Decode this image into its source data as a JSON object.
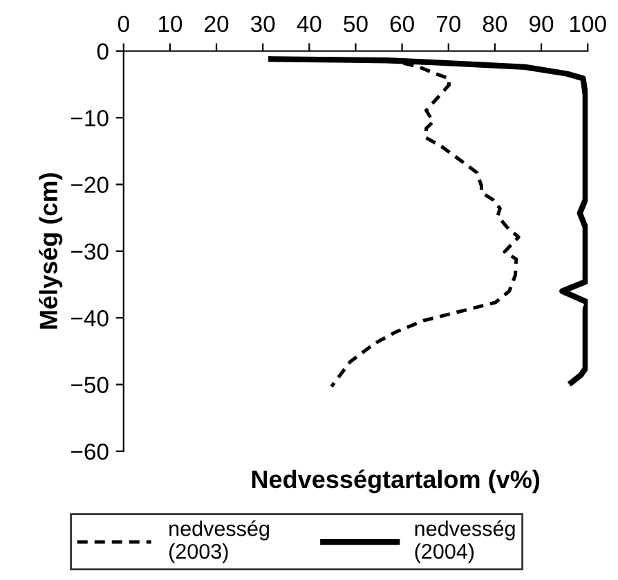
{
  "chart_data": {
    "type": "line",
    "xlabel": "Nedvességtartalom (v%)",
    "ylabel": "Mélység (cm)",
    "xlim": [
      0,
      100
    ],
    "xticks": [
      0,
      10,
      20,
      30,
      40,
      50,
      60,
      70,
      80,
      90,
      100
    ],
    "ylim": [
      -60,
      0
    ],
    "yticks": [
      0,
      {
        "value": -10,
        "label": "−10"
      },
      {
        "value": -20,
        "label": "−20"
      },
      {
        "value": -30,
        "label": "−30"
      },
      {
        "value": -40,
        "label": "−40"
      },
      {
        "value": -50,
        "label": "−50"
      },
      {
        "value": -60,
        "label": "−60"
      }
    ],
    "grid": false,
    "legend": "bottom",
    "series": [
      {
        "name": "nedvesség (2003)",
        "color": "#000000",
        "line_style": "dashed",
        "x": [
          56.7,
          63.7,
          67.2,
          70.1,
          70.1,
          65.2,
          66.7,
          65.2,
          65.2,
          68.7,
          72.6,
          76.1,
          77.1,
          77.1,
          79.6,
          81.1,
          80.6,
          82.6,
          85.1,
          82.1,
          84.6,
          84.4,
          83.1,
          80.1,
          76.1,
          71.6,
          64.7,
          58.7,
          54.2,
          48.8,
          44.8
        ],
        "values": [
          -1.2,
          -2.4,
          -3.4,
          -4.1,
          -5.1,
          -8.9,
          -10.6,
          -11.6,
          -13.0,
          -14.4,
          -16.4,
          -18.2,
          -20.2,
          -21.2,
          -22.3,
          -23.6,
          -24.7,
          -26.4,
          -27.9,
          -30.1,
          -31.2,
          -33.6,
          -36.0,
          -37.7,
          -38.4,
          -39.2,
          -40.4,
          -42.1,
          -43.8,
          -46.6,
          -50.3
        ]
      },
      {
        "name": "nedvesség (2004)",
        "color": "#000000",
        "line_style": "solid",
        "x": [
          31.8,
          56.7,
          66.7,
          86.6,
          95.5,
          99.0,
          99.5,
          99.5,
          98.3,
          99.5,
          99.5,
          94.5,
          100,
          99.5,
          99.5,
          98.5,
          96.5
        ],
        "values": [
          -1.2,
          -1.4,
          -1.7,
          -2.4,
          -3.4,
          -4.1,
          -6.5,
          -22.3,
          -24.3,
          -26.4,
          -34.6,
          -36.0,
          -37.7,
          -38.7,
          -47.6,
          -48.6,
          -49.7
        ]
      }
    ]
  }
}
